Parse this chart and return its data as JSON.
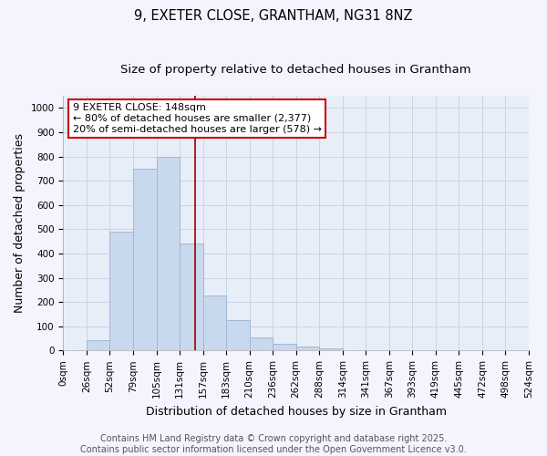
{
  "title": "9, EXETER CLOSE, GRANTHAM, NG31 8NZ",
  "subtitle": "Size of property relative to detached houses in Grantham",
  "xlabel": "Distribution of detached houses by size in Grantham",
  "ylabel": "Number of detached properties",
  "bin_labels": [
    "0sqm",
    "26sqm",
    "52sqm",
    "79sqm",
    "105sqm",
    "131sqm",
    "157sqm",
    "183sqm",
    "210sqm",
    "236sqm",
    "262sqm",
    "288sqm",
    "314sqm",
    "341sqm",
    "367sqm",
    "393sqm",
    "419sqm",
    "445sqm",
    "472sqm",
    "498sqm",
    "524sqm"
  ],
  "values": [
    0,
    42,
    490,
    750,
    800,
    440,
    225,
    127,
    52,
    28,
    15,
    8,
    0,
    0,
    0,
    0,
    0,
    0,
    0,
    0
  ],
  "bar_color": "#c8d8ed",
  "bar_edge_color": "#a0b8d8",
  "vline_position": 5.65,
  "vline_color": "#990000",
  "annotation_text": "9 EXETER CLOSE: 148sqm\n← 80% of detached houses are smaller (2,377)\n20% of semi-detached houses are larger (578) →",
  "annotation_box_facecolor": "#ffffff",
  "annotation_box_edgecolor": "#cc0000",
  "ylim": [
    0,
    1050
  ],
  "yticks": [
    0,
    100,
    200,
    300,
    400,
    500,
    600,
    700,
    800,
    900,
    1000
  ],
  "grid_color": "#c8d4e8",
  "plot_bg_color": "#e8eef8",
  "fig_bg_color": "#f4f4ff",
  "footer_line1": "Contains HM Land Registry data © Crown copyright and database right 2025.",
  "footer_line2": "Contains public sector information licensed under the Open Government Licence v3.0.",
  "title_fontsize": 10.5,
  "subtitle_fontsize": 9.5,
  "axis_label_fontsize": 9,
  "tick_fontsize": 7.5,
  "annotation_fontsize": 8,
  "footer_fontsize": 7
}
